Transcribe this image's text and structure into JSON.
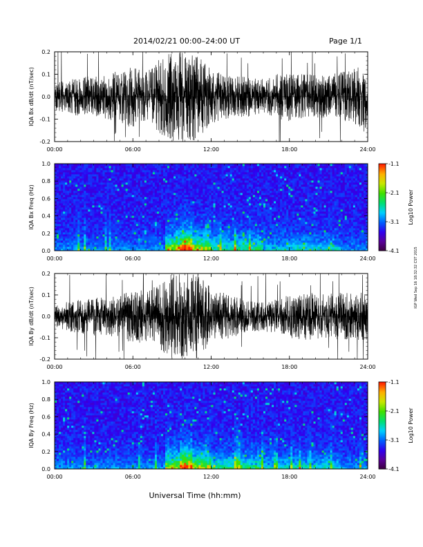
{
  "header": {
    "title": "2014/02/21   00:00–24:00 UT",
    "page": "Page 1/1"
  },
  "xlabel": "Universal Time (hh:mm)",
  "side_note": "IGP Wed Sep 16 18:32:32 CST 2015",
  "colorbar": {
    "label": "Log10 Power",
    "ticks": [
      "-1.1",
      "-2.1",
      "-3.1",
      "-4.1"
    ],
    "colors": [
      "#3a003a",
      "#5a0098",
      "#3000f0",
      "#0060ff",
      "#00d0ff",
      "#00e070",
      "#40e000",
      "#c8e800",
      "#ffb000",
      "#ff2000"
    ]
  },
  "chart_data": [
    {
      "type": "line",
      "ylabel": "IQA Bx dB/dt (nT/sec)",
      "xticks": [
        "00:00",
        "06:00",
        "12:00",
        "18:00",
        "24:00"
      ],
      "yticks": [
        "0.2",
        "0.1",
        "0.0",
        "-0.1",
        "-0.2"
      ],
      "xlim": [
        0,
        24
      ],
      "ylim": [
        -0.2,
        0.2
      ],
      "envelope": {
        "hours": [
          0,
          1,
          2,
          3,
          4,
          5,
          6,
          7,
          8,
          9,
          9.5,
          10,
          10.5,
          11,
          12,
          13,
          14,
          15,
          16,
          17,
          18,
          19,
          20,
          21,
          22,
          23,
          24
        ],
        "amplitude": [
          0.06,
          0.08,
          0.09,
          0.09,
          0.1,
          0.12,
          0.14,
          0.11,
          0.16,
          0.2,
          0.2,
          0.2,
          0.2,
          0.19,
          0.12,
          0.1,
          0.09,
          0.09,
          0.08,
          0.1,
          0.11,
          0.1,
          0.1,
          0.1,
          0.11,
          0.13,
          0.14
        ]
      }
    },
    {
      "type": "heatmap",
      "ylabel": "IQA Bx Freq (Hz)",
      "xticks": [
        "00:00",
        "06:00",
        "12:00",
        "18:00",
        "24:00"
      ],
      "yticks": [
        "1.0",
        "0.8",
        "0.6",
        "0.4",
        "0.2",
        "0.0"
      ],
      "xlim": [
        0,
        24
      ],
      "ylim": [
        0,
        1
      ],
      "zlim": [
        -4.1,
        -1.1
      ]
    },
    {
      "type": "line",
      "ylabel": "IQA By dB/dt (nT/sec)",
      "xticks": [
        "00:00",
        "06:00",
        "12:00",
        "18:00",
        "24:00"
      ],
      "yticks": [
        "0.2",
        "0.1",
        "0.0",
        "-0.1",
        "-0.2"
      ],
      "xlim": [
        0,
        24
      ],
      "ylim": [
        -0.2,
        0.2
      ],
      "envelope": {
        "hours": [
          0,
          1,
          2,
          3,
          4,
          5,
          6,
          7,
          8,
          9,
          9.5,
          10,
          10.5,
          11,
          12,
          13,
          14,
          15,
          16,
          17,
          18,
          19,
          20,
          21,
          22,
          23,
          24
        ],
        "amplitude": [
          0.05,
          0.07,
          0.08,
          0.09,
          0.09,
          0.1,
          0.13,
          0.12,
          0.15,
          0.2,
          0.2,
          0.2,
          0.2,
          0.2,
          0.13,
          0.11,
          0.09,
          0.07,
          0.07,
          0.08,
          0.1,
          0.11,
          0.11,
          0.11,
          0.11,
          0.11,
          0.12
        ]
      }
    },
    {
      "type": "heatmap",
      "ylabel": "IQA By Freq (Hz)",
      "xticks": [
        "00:00",
        "06:00",
        "12:00",
        "18:00",
        "24:00"
      ],
      "yticks": [
        "1.0",
        "0.8",
        "0.6",
        "0.4",
        "0.2",
        "0.0"
      ],
      "xlim": [
        0,
        24
      ],
      "ylim": [
        0,
        1
      ],
      "zlim": [
        -4.1,
        -1.1
      ]
    }
  ]
}
